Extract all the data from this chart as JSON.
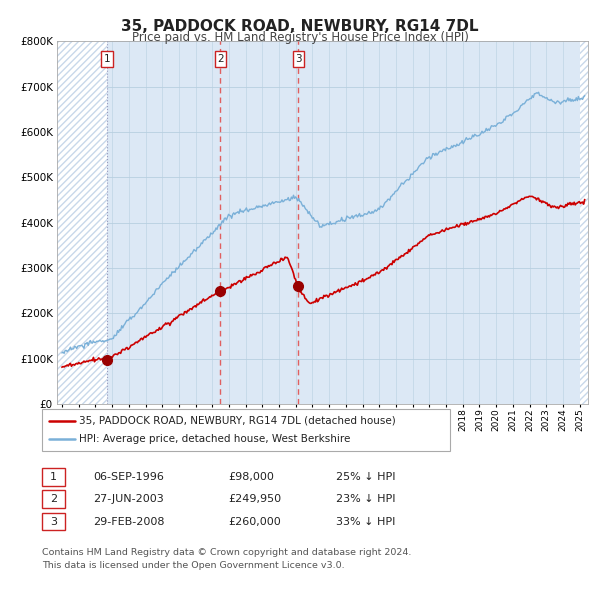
{
  "title": "35, PADDOCK ROAD, NEWBURY, RG14 7DL",
  "subtitle": "Price paid vs. HM Land Registry's House Price Index (HPI)",
  "background_color": "#ffffff",
  "plot_bg_color": "#dce8f5",
  "hatch_color": "#c8d8ea",
  "grid_color": "#b8cfe0",
  "red_line_color": "#cc0000",
  "blue_line_color": "#7ab0d8",
  "sale_marker_color": "#990000",
  "dashed_line_color": "#e06060",
  "dotted_line_color": "#9999bb",
  "ylim": [
    0,
    800000
  ],
  "yticks": [
    0,
    100000,
    200000,
    300000,
    400000,
    500000,
    600000,
    700000,
    800000
  ],
  "ytick_labels": [
    "£0",
    "£100K",
    "£200K",
    "£300K",
    "£400K",
    "£500K",
    "£600K",
    "£700K",
    "£800K"
  ],
  "xlim_start": 1993.7,
  "xlim_end": 2025.5,
  "sale_dates": [
    1996.69,
    2003.49,
    2008.16
  ],
  "sale_prices": [
    98000,
    249950,
    260000
  ],
  "sale_labels": [
    "1",
    "2",
    "3"
  ],
  "legend_entries": [
    "35, PADDOCK ROAD, NEWBURY, RG14 7DL (detached house)",
    "HPI: Average price, detached house, West Berkshire"
  ],
  "table_rows": [
    {
      "num": "1",
      "date": "06-SEP-1996",
      "price": "£98,000",
      "hpi": "25% ↓ HPI"
    },
    {
      "num": "2",
      "date": "27-JUN-2003",
      "price": "£249,950",
      "hpi": "23% ↓ HPI"
    },
    {
      "num": "3",
      "date": "29-FEB-2008",
      "price": "£260,000",
      "hpi": "33% ↓ HPI"
    }
  ],
  "footer": "Contains HM Land Registry data © Crown copyright and database right 2024.\nThis data is licensed under the Open Government Licence v3.0."
}
